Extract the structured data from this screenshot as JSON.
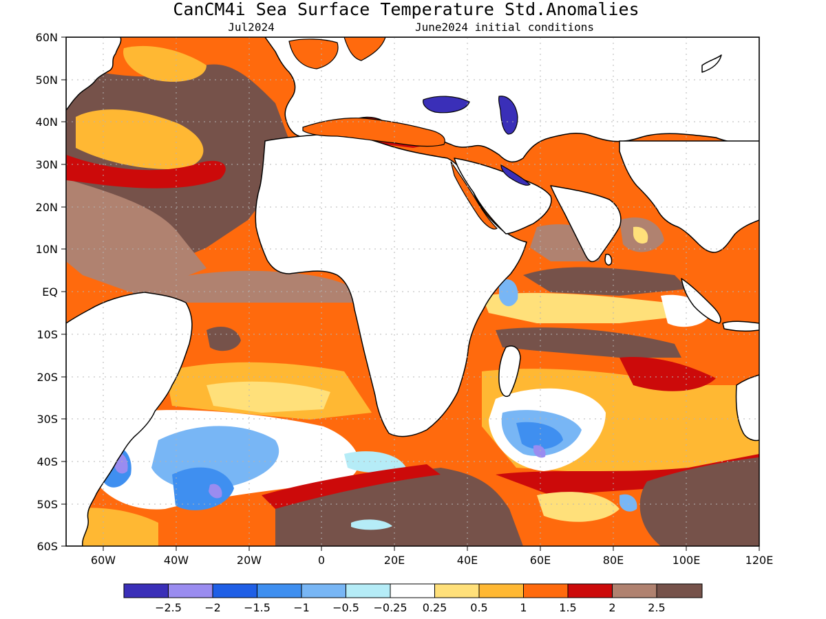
{
  "title": "CanCM4i Sea Surface Temperature Std.Anomalies",
  "valid_month": "Jul2024",
  "initial_conditions": "June2024 initial conditions",
  "latitude_labels": [
    "60N",
    "50N",
    "40N",
    "30N",
    "20N",
    "10N",
    "EQ",
    "10S",
    "20S",
    "30S",
    "40S",
    "50S",
    "60S"
  ],
  "longitude_labels": [
    "60W",
    "40W",
    "20W",
    "0",
    "20E",
    "40E",
    "60E",
    "80E",
    "100E",
    "120E"
  ],
  "legend": {
    "colors": [
      "#3a2fb8",
      "#9a8cf0",
      "#1f5fe6",
      "#3f8ff0",
      "#78b6f5",
      "#b5ecf7",
      "#ffffff",
      "#ffe07a",
      "#ffb833",
      "#ff6a0d",
      "#cc0a0a",
      "#b08270",
      "#76524a"
    ],
    "labels": [
      "−2.5",
      "−2",
      "−1.5",
      "−1",
      "−0.5",
      "−0.25",
      "0.25",
      "0.5",
      "1",
      "1.5",
      "2",
      "2.5"
    ]
  },
  "colors": {
    "land": "#ffffff",
    "coast": "#000000",
    "grid": "#b4b4b4"
  }
}
